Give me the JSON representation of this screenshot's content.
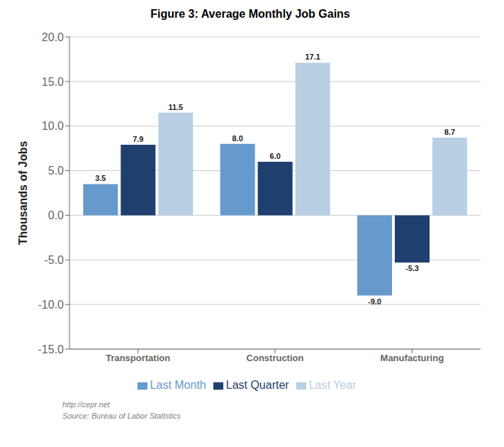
{
  "chart_data": {
    "type": "bar",
    "title": "Figure 3:  Average Monthly Job Gains",
    "ylabel": "Thousands of Jobs",
    "categories": [
      "Transportation",
      "Construction",
      "Manufacturing"
    ],
    "series": [
      {
        "name": "Last Month",
        "color": "#6699cc",
        "values": [
          3.5,
          8.0,
          -9.0
        ],
        "value_labels": [
          "3.5",
          "8.0",
          "-9.0"
        ]
      },
      {
        "name": "Last Quarter",
        "color": "#1f3f6e",
        "values": [
          7.9,
          6.0,
          -5.3
        ],
        "value_labels": [
          "7.9",
          "6.0",
          "-5.3"
        ]
      },
      {
        "name": "Last Year",
        "color": "#b8cfe4",
        "values": [
          11.5,
          17.1,
          8.7
        ],
        "value_labels": [
          "11.5",
          "17.1",
          "8.7"
        ]
      }
    ],
    "ylim": [
      -15.0,
      20.0
    ],
    "yticks": [
      {
        "value": -15,
        "label": "-15.0"
      },
      {
        "value": -10,
        "label": "-10.0"
      },
      {
        "value": -5,
        "label": "-5.0"
      },
      {
        "value": 0,
        "label": "0.0"
      },
      {
        "value": 5,
        "label": "5.0"
      },
      {
        "value": 10,
        "label": "10.0"
      },
      {
        "value": 15,
        "label": "15.0"
      },
      {
        "value": 20,
        "label": "20.0"
      }
    ],
    "grid": true,
    "legend": "bottom",
    "data_labels": true,
    "annotations": [
      "http://cepr.net",
      "Source: Bureau of Labor Statistics"
    ]
  }
}
